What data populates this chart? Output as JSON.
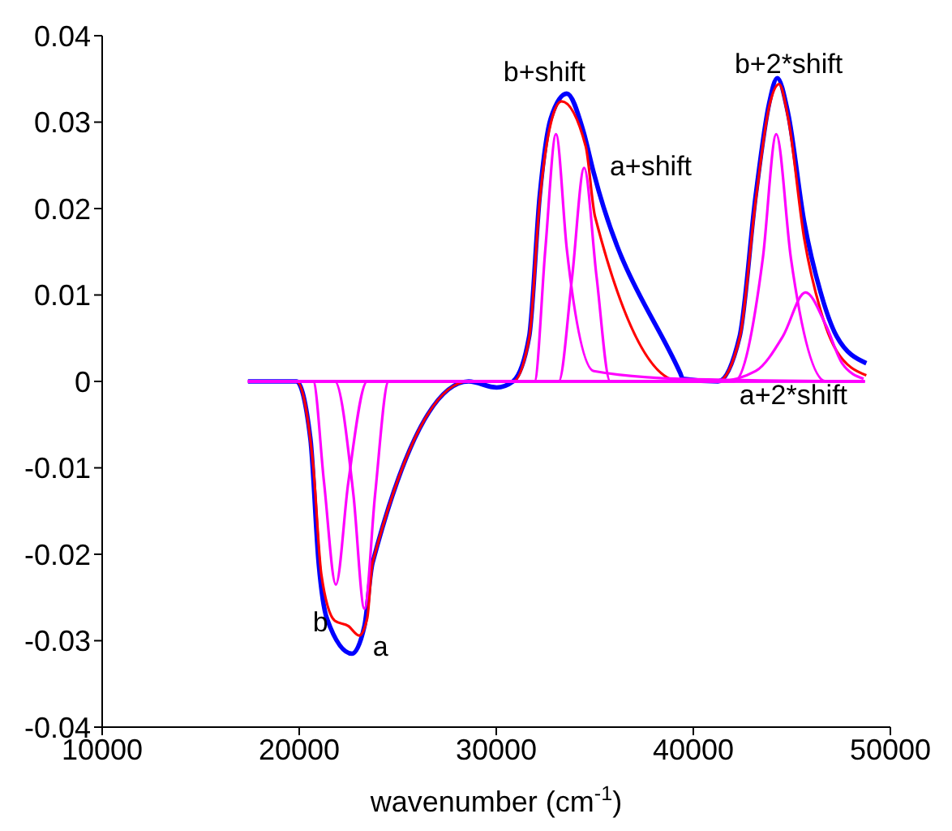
{
  "chart_data": {
    "type": "line",
    "xlabel": "wavenumber (cm$^{-1}$)",
    "xlim": [
      10000,
      50000
    ],
    "xticks": [
      10000,
      20000,
      30000,
      40000,
      50000
    ],
    "ylim": [
      -0.04,
      0.04
    ],
    "yticks": [
      -0.04,
      -0.03,
      -0.02,
      -0.01,
      0,
      0.01,
      0.02,
      0.03,
      0.04
    ],
    "grid": false,
    "marker": "none",
    "line_style": "solid",
    "series": [
      {
        "color": "#0000ff",
        "x": [
          17400,
          19860,
          20570,
          20990,
          21400,
          22680,
          23310,
          23720,
          28600,
          30020,
          30850,
          31670,
          32210,
          32760,
          33580,
          34400,
          34950,
          39330,
          39470,
          41250,
          42350,
          43170,
          43850,
          44260,
          44810,
          45630,
          46460,
          47280,
          48780
        ],
        "values": [
          0,
          0,
          -0.0067,
          -0.0211,
          -0.0274,
          -0.0315,
          -0.0283,
          -0.021,
          0,
          -0.0007,
          0,
          0.0052,
          0.0216,
          0.0304,
          0.0333,
          0.0291,
          0.0241,
          0.001,
          0.0003,
          0,
          0.0052,
          0.0216,
          0.0322,
          0.0351,
          0.031,
          0.0184,
          0.0103,
          0.0052,
          0.0021
        ]
      },
      {
        "color": "#ff0000",
        "x": [
          17400,
          19860,
          20710,
          21120,
          21810,
          22490,
          23040,
          23450,
          23720,
          28600,
          30850,
          31670,
          32210,
          32760,
          33310,
          34540,
          35010,
          39330,
          41250,
          42350,
          43170,
          43850,
          44350,
          44810,
          45630,
          46460,
          47280,
          48780
        ],
        "values": [
          0,
          0,
          -0.0098,
          -0.0223,
          -0.0277,
          -0.0283,
          -0.0294,
          -0.0274,
          -0.021,
          0,
          0,
          0.005,
          0.021,
          0.0298,
          0.0324,
          0.0272,
          0.0191,
          0,
          0,
          0.005,
          0.021,
          0.0318,
          0.0344,
          0.0305,
          0.0165,
          0.0082,
          0.0035,
          0.0007
        ]
      },
      {
        "color": "#ff00ff",
        "x": [
          17400,
          20710,
          21260,
          21860,
          22490,
          23450,
          48700
        ],
        "values": [
          0,
          0,
          -0.0117,
          -0.0235,
          -0.0117,
          0,
          0
        ]
      },
      {
        "color": "#ff00ff",
        "x": [
          17400,
          21810,
          22750,
          23310,
          23850,
          24540,
          48700
        ],
        "values": [
          0,
          0,
          -0.0131,
          -0.0263,
          -0.0131,
          0,
          0
        ]
      },
      {
        "color": "#ff00ff",
        "x": [
          17400,
          31940,
          32490,
          33030,
          33580,
          34950,
          39330,
          48700
        ],
        "values": [
          0,
          0,
          0.0153,
          0.0286,
          0.0153,
          0.0012,
          0.0003,
          0
        ]
      },
      {
        "color": "#ff00ff",
        "x": [
          17400,
          33170,
          33850,
          34460,
          35090,
          35780,
          48700
        ],
        "values": [
          0,
          0,
          0.0121,
          0.0247,
          0.0121,
          0,
          0
        ]
      },
      {
        "color": "#ff00ff",
        "x": [
          17400,
          42070,
          43530,
          44210,
          44950,
          46730,
          48700
        ],
        "values": [
          0,
          0,
          0.0143,
          0.0286,
          0.0143,
          0,
          0
        ]
      },
      {
        "color": "#ff00ff",
        "x": [
          17400,
          41250,
          43170,
          44540,
          45690,
          46730,
          47550,
          48640
        ],
        "values": [
          0,
          0,
          0.0012,
          0.0052,
          0.0103,
          0.0065,
          0.0021,
          0.0003
        ]
      }
    ],
    "annotations": [
      "b",
      "a",
      "b+shift",
      "a+shift",
      "b+2*shift",
      "a+2*shift"
    ]
  }
}
